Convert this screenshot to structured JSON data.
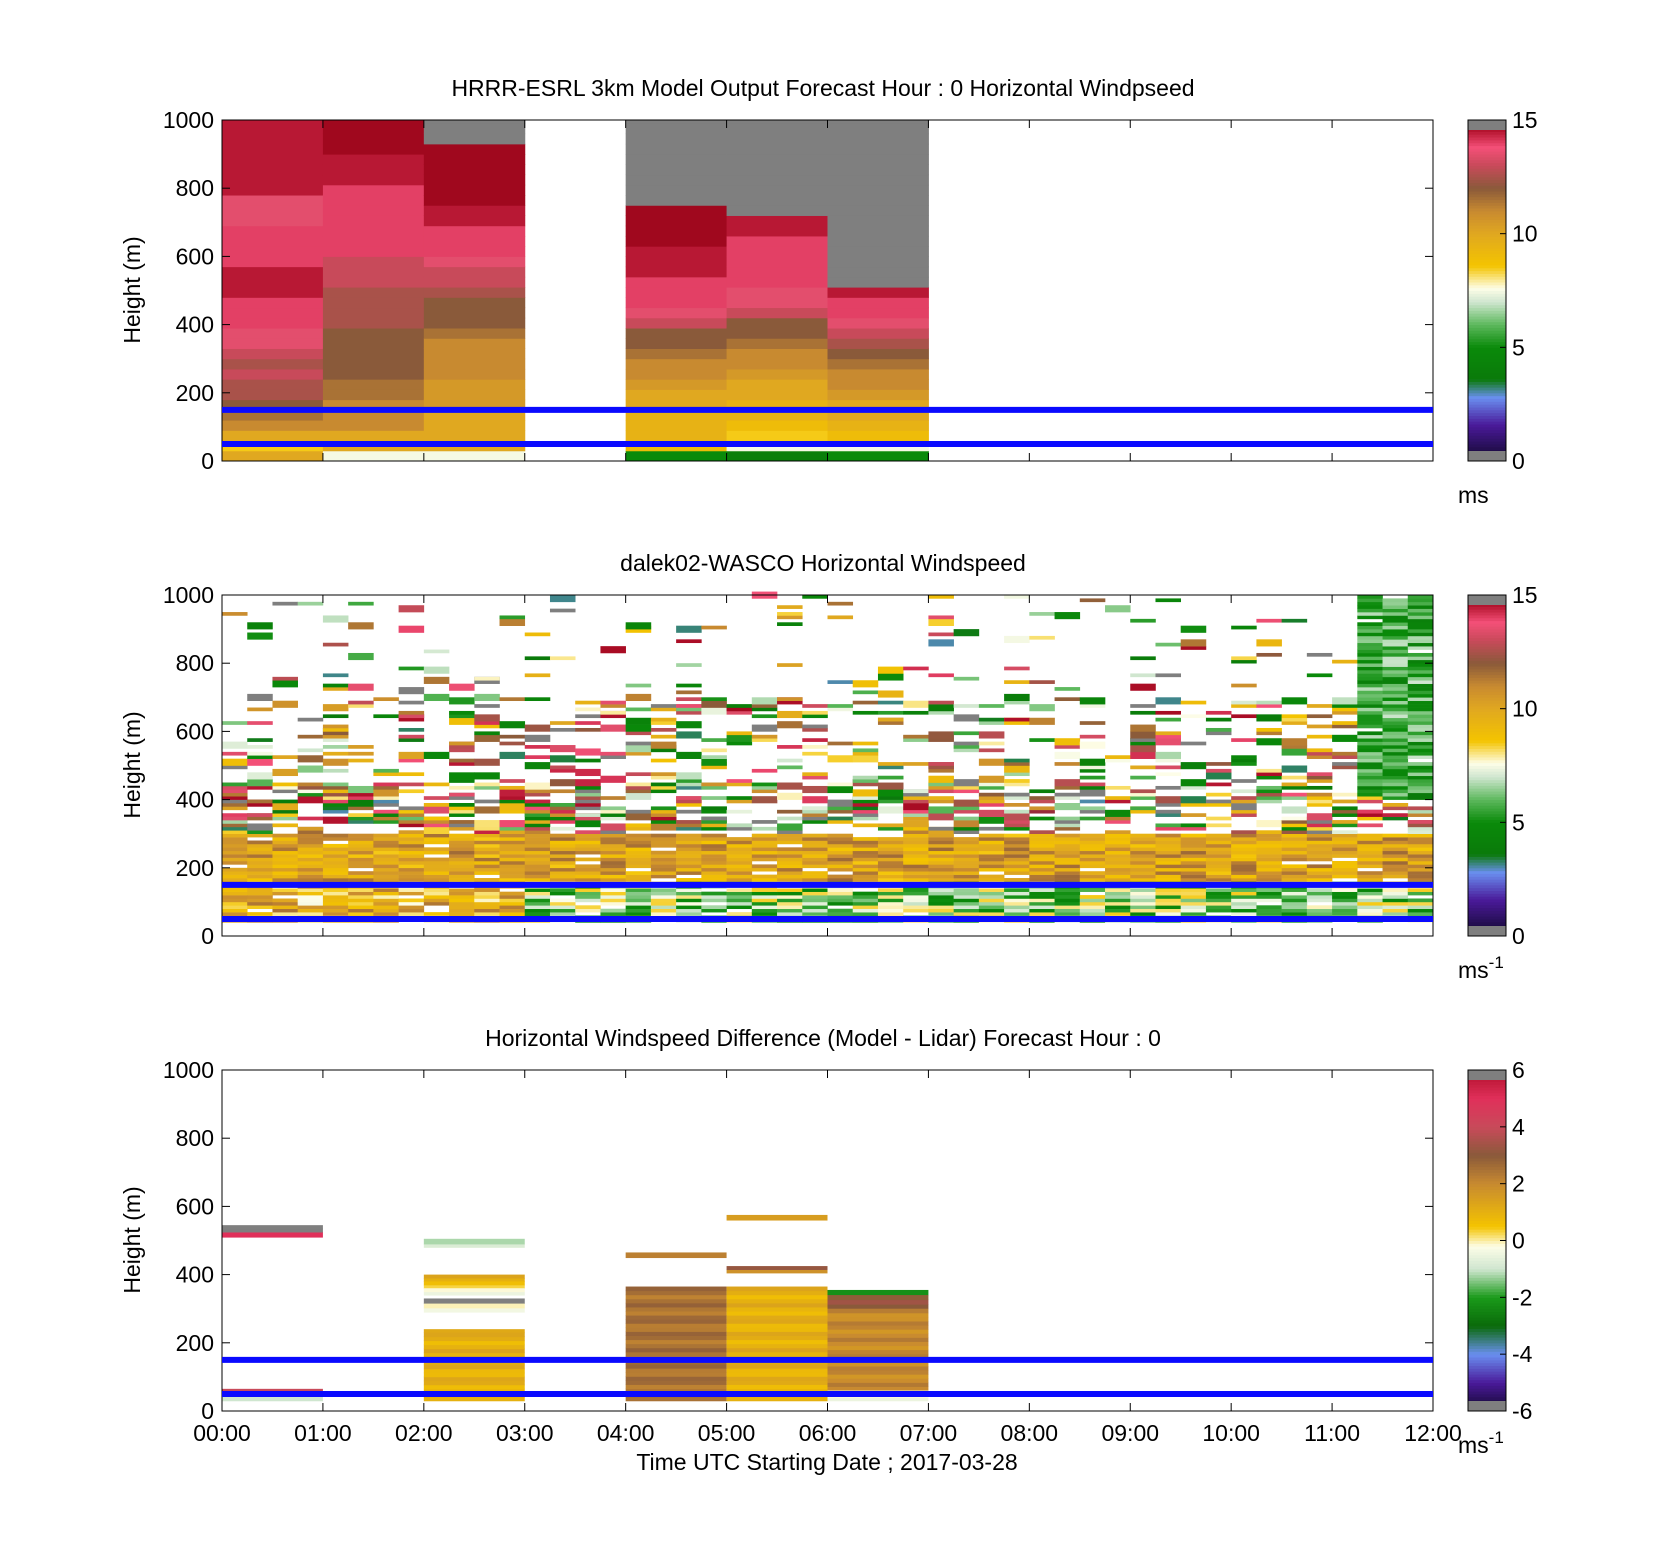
{
  "figure": {
    "xlabel": "Time UTC  Starting Date ; 2017-03-28",
    "xticks": [
      "00:00",
      "01:00",
      "02:00",
      "03:00",
      "04:00",
      "05:00",
      "06:00",
      "07:00",
      "08:00",
      "09:00",
      "10:00",
      "11:00",
      "12:00"
    ]
  },
  "chart_data": [
    {
      "type": "heatmap",
      "title": "HRRR-ESRL 3km Model Output   Forecast Hour : 0 Horizontal Windpseed",
      "xlabel": "",
      "ylabel": "Height (m)",
      "xlim": [
        0,
        12
      ],
      "ylim": [
        0,
        1000
      ],
      "yticks": [
        0,
        200,
        400,
        600,
        800,
        1000
      ],
      "grid": false,
      "colorbar": {
        "ticks": [
          0,
          5,
          10,
          15
        ],
        "unit": "ms",
        "unit_sup": "",
        "range": [
          0,
          15
        ],
        "scale": "wind"
      },
      "hlines": [
        50,
        150
      ],
      "hline_color": "#0a0aff",
      "data_note": "model windspeed; hourly columns, 30 m bins; gray = above range / saturated",
      "columns": [
        {
          "hour": 0,
          "values": [
            10,
            8.5,
            10,
            11,
            11.5,
            12,
            12.5,
            12.5,
            13,
            12.5,
            13,
            13.5,
            13.5,
            14,
            14,
            14,
            14.5,
            14.5,
            14.5,
            14,
            14,
            14,
            14,
            13.5,
            13.5,
            13.5,
            14.5,
            14.5,
            14.5,
            14.5,
            14.5,
            14.5,
            14.5,
            14.5
          ]
        },
        {
          "hour": 1,
          "values": [
            7.5,
            10,
            10,
            11,
            11,
            11,
            11.5,
            11.5,
            12,
            12,
            12,
            12,
            12,
            12.5,
            12.5,
            12.5,
            12.5,
            13,
            13,
            13,
            14,
            14,
            14,
            14,
            14,
            14,
            14,
            14.5,
            14.5,
            14.5,
            15,
            15,
            15,
            15
          ]
        },
        {
          "hour": 2,
          "values": [
            7.5,
            10,
            10,
            10,
            10,
            10.5,
            10.5,
            10.5,
            11,
            11,
            11,
            11,
            11.5,
            12,
            12,
            12,
            12.5,
            13,
            13,
            13.5,
            14,
            14,
            14,
            14.5,
            14.5,
            15,
            15,
            15,
            15,
            15,
            15,
            16,
            16,
            16
          ]
        },
        {
          "hour": 3,
          "values": []
        },
        {
          "hour": 4,
          "values": [
            5,
            9,
            9.5,
            9.5,
            9.5,
            10,
            10,
            10.5,
            11,
            11,
            11.5,
            12,
            12,
            13,
            13.5,
            14,
            14,
            14,
            14.5,
            14.5,
            14.5,
            15,
            15,
            15,
            15,
            15.5,
            15.5,
            15.5,
            16,
            16,
            16,
            16,
            16,
            16
          ]
        },
        {
          "hour": 5,
          "values": [
            4,
            7.5,
            8.5,
            9,
            9.5,
            9.5,
            10,
            10,
            10.5,
            11,
            11,
            11.5,
            12,
            12,
            13,
            13.5,
            13.5,
            14,
            14,
            14,
            14,
            14,
            14.5,
            14.5,
            16,
            16,
            16,
            16,
            16,
            16,
            16,
            16,
            16,
            16
          ]
        },
        {
          "hour": 6,
          "values": [
            5,
            7.5,
            9,
            9.5,
            10,
            10,
            10.5,
            11,
            11,
            11.5,
            12,
            12.5,
            13,
            13.5,
            14,
            14,
            14.5,
            16,
            16,
            16,
            16,
            16,
            16,
            16,
            16,
            16,
            16,
            16,
            16,
            16,
            16,
            16,
            16,
            16
          ]
        },
        {
          "hour": 7,
          "values": []
        },
        {
          "hour": 8,
          "values": []
        },
        {
          "hour": 9,
          "values": []
        },
        {
          "hour": 10,
          "values": []
        },
        {
          "hour": 11,
          "values": []
        }
      ]
    },
    {
      "type": "heatmap",
      "title": "dalek02-WASCO  Horizontal Windspeed",
      "xlabel": "",
      "ylabel": "Height (m)",
      "xlim": [
        0,
        12
      ],
      "ylim": [
        0,
        1000
      ],
      "yticks": [
        0,
        200,
        400,
        600,
        800,
        1000
      ],
      "grid": false,
      "colorbar": {
        "ticks": [
          0,
          5,
          10,
          15
        ],
        "unit": "ms",
        "unit_sup": "-1",
        "range": [
          0,
          15
        ],
        "scale": "wind"
      },
      "hlines": [
        50,
        150
      ],
      "hline_color": "#0a0aff",
      "data_note": "lidar windspeed; 48 columns of 15 min, 10 m bins, sparse above ~300 m; values approximate",
      "sample": "generated"
    },
    {
      "type": "heatmap",
      "title": "Horizontal Windspeed Difference (Model - Lidar) Forecast Hour : 0",
      "xlabel": "Time UTC  Starting Date ; 2017-03-28",
      "ylabel": "Height (m)",
      "xlim": [
        0,
        12
      ],
      "ylim": [
        0,
        1000
      ],
      "yticks": [
        0,
        200,
        400,
        600,
        800,
        1000
      ],
      "grid": false,
      "colorbar": {
        "ticks": [
          -6,
          -4,
          -2,
          0,
          2,
          4,
          6
        ],
        "unit": "ms",
        "unit_sup": "-1",
        "range": [
          -6,
          6
        ],
        "scale": "diff"
      },
      "hlines": [
        50,
        150
      ],
      "hline_color": "#0a0aff",
      "data_note": "difference (model - lidar); hourly columns",
      "segments": [
        {
          "hour": 0,
          "from": 510,
          "to": 525,
          "value": 5
        },
        {
          "hour": 0,
          "from": 525,
          "to": 545,
          "value": 7
        },
        {
          "hour": 0,
          "from": 30,
          "to": 45,
          "value": -1
        },
        {
          "hour": 0,
          "from": 45,
          "to": 55,
          "value": 3
        },
        {
          "hour": 0,
          "from": 55,
          "to": 65,
          "value": 4
        },
        {
          "hour": 2,
          "from": 480,
          "to": 490,
          "value": -0.8
        },
        {
          "hour": 2,
          "from": 490,
          "to": 505,
          "value": -1.2
        },
        {
          "hour": 2,
          "from": 380,
          "to": 400,
          "value": 1
        },
        {
          "hour": 2,
          "from": 360,
          "to": 380,
          "value": 0.3
        },
        {
          "hour": 2,
          "from": 340,
          "to": 360,
          "value": -0.5
        },
        {
          "hour": 2,
          "from": 315,
          "to": 330,
          "value": 7
        },
        {
          "hour": 2,
          "from": 290,
          "to": 315,
          "value": -0.4
        },
        {
          "hour": 2,
          "from": 230,
          "to": 240,
          "value": 1.2
        },
        {
          "hour": 2,
          "from": 30,
          "to": 230,
          "value": 1
        },
        {
          "hour": 4,
          "from": 450,
          "to": 465,
          "value": 2.2
        },
        {
          "hour": 4,
          "from": 30,
          "to": 365,
          "value": 2.5
        },
        {
          "hour": 5,
          "from": 560,
          "to": 575,
          "value": 1.5
        },
        {
          "hour": 5,
          "from": 405,
          "to": 415,
          "value": 1.8
        },
        {
          "hour": 5,
          "from": 415,
          "to": 425,
          "value": 3.2
        },
        {
          "hour": 5,
          "from": 30,
          "to": 365,
          "value": 1
        },
        {
          "hour": 6,
          "from": 340,
          "to": 355,
          "value": -2.2
        },
        {
          "hour": 6,
          "from": 300,
          "to": 340,
          "value": 3
        },
        {
          "hour": 6,
          "from": 60,
          "to": 300,
          "value": 2
        },
        {
          "hour": 6,
          "from": 30,
          "to": 60,
          "value": -0.5
        }
      ]
    }
  ]
}
